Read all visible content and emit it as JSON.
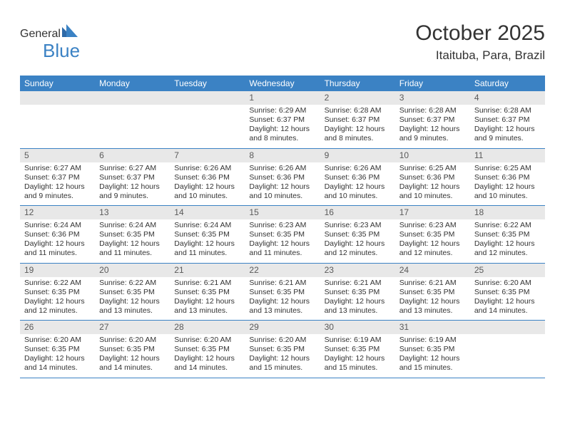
{
  "logo": {
    "text1": "General",
    "text2": "Blue"
  },
  "title": "October 2025",
  "location": "Itaituba, Para, Brazil",
  "styling": {
    "header_bg": "#3b82c4",
    "header_text": "#ffffff",
    "daynum_bg": "#e8e8e8",
    "daynum_text": "#5a5a5a",
    "body_text": "#333333",
    "cell_fontsize": 10.5,
    "header_fontsize": 12,
    "title_fontsize": 30,
    "location_fontsize": 17,
    "row_border": "#3b82c4",
    "columns": 7,
    "rows": 5
  },
  "dayNames": [
    "Sunday",
    "Monday",
    "Tuesday",
    "Wednesday",
    "Thursday",
    "Friday",
    "Saturday"
  ],
  "weeks": [
    [
      null,
      null,
      null,
      {
        "n": "1",
        "sr": "6:29 AM",
        "ss": "6:37 PM",
        "dl": "12 hours and 8 minutes."
      },
      {
        "n": "2",
        "sr": "6:28 AM",
        "ss": "6:37 PM",
        "dl": "12 hours and 8 minutes."
      },
      {
        "n": "3",
        "sr": "6:28 AM",
        "ss": "6:37 PM",
        "dl": "12 hours and 9 minutes."
      },
      {
        "n": "4",
        "sr": "6:28 AM",
        "ss": "6:37 PM",
        "dl": "12 hours and 9 minutes."
      }
    ],
    [
      {
        "n": "5",
        "sr": "6:27 AM",
        "ss": "6:37 PM",
        "dl": "12 hours and 9 minutes."
      },
      {
        "n": "6",
        "sr": "6:27 AM",
        "ss": "6:37 PM",
        "dl": "12 hours and 9 minutes."
      },
      {
        "n": "7",
        "sr": "6:26 AM",
        "ss": "6:36 PM",
        "dl": "12 hours and 10 minutes."
      },
      {
        "n": "8",
        "sr": "6:26 AM",
        "ss": "6:36 PM",
        "dl": "12 hours and 10 minutes."
      },
      {
        "n": "9",
        "sr": "6:26 AM",
        "ss": "6:36 PM",
        "dl": "12 hours and 10 minutes."
      },
      {
        "n": "10",
        "sr": "6:25 AM",
        "ss": "6:36 PM",
        "dl": "12 hours and 10 minutes."
      },
      {
        "n": "11",
        "sr": "6:25 AM",
        "ss": "6:36 PM",
        "dl": "12 hours and 10 minutes."
      }
    ],
    [
      {
        "n": "12",
        "sr": "6:24 AM",
        "ss": "6:36 PM",
        "dl": "12 hours and 11 minutes."
      },
      {
        "n": "13",
        "sr": "6:24 AM",
        "ss": "6:35 PM",
        "dl": "12 hours and 11 minutes."
      },
      {
        "n": "14",
        "sr": "6:24 AM",
        "ss": "6:35 PM",
        "dl": "12 hours and 11 minutes."
      },
      {
        "n": "15",
        "sr": "6:23 AM",
        "ss": "6:35 PM",
        "dl": "12 hours and 11 minutes."
      },
      {
        "n": "16",
        "sr": "6:23 AM",
        "ss": "6:35 PM",
        "dl": "12 hours and 12 minutes."
      },
      {
        "n": "17",
        "sr": "6:23 AM",
        "ss": "6:35 PM",
        "dl": "12 hours and 12 minutes."
      },
      {
        "n": "18",
        "sr": "6:22 AM",
        "ss": "6:35 PM",
        "dl": "12 hours and 12 minutes."
      }
    ],
    [
      {
        "n": "19",
        "sr": "6:22 AM",
        "ss": "6:35 PM",
        "dl": "12 hours and 12 minutes."
      },
      {
        "n": "20",
        "sr": "6:22 AM",
        "ss": "6:35 PM",
        "dl": "12 hours and 13 minutes."
      },
      {
        "n": "21",
        "sr": "6:21 AM",
        "ss": "6:35 PM",
        "dl": "12 hours and 13 minutes."
      },
      {
        "n": "22",
        "sr": "6:21 AM",
        "ss": "6:35 PM",
        "dl": "12 hours and 13 minutes."
      },
      {
        "n": "23",
        "sr": "6:21 AM",
        "ss": "6:35 PM",
        "dl": "12 hours and 13 minutes."
      },
      {
        "n": "24",
        "sr": "6:21 AM",
        "ss": "6:35 PM",
        "dl": "12 hours and 13 minutes."
      },
      {
        "n": "25",
        "sr": "6:20 AM",
        "ss": "6:35 PM",
        "dl": "12 hours and 14 minutes."
      }
    ],
    [
      {
        "n": "26",
        "sr": "6:20 AM",
        "ss": "6:35 PM",
        "dl": "12 hours and 14 minutes."
      },
      {
        "n": "27",
        "sr": "6:20 AM",
        "ss": "6:35 PM",
        "dl": "12 hours and 14 minutes."
      },
      {
        "n": "28",
        "sr": "6:20 AM",
        "ss": "6:35 PM",
        "dl": "12 hours and 14 minutes."
      },
      {
        "n": "29",
        "sr": "6:20 AM",
        "ss": "6:35 PM",
        "dl": "12 hours and 15 minutes."
      },
      {
        "n": "30",
        "sr": "6:19 AM",
        "ss": "6:35 PM",
        "dl": "12 hours and 15 minutes."
      },
      {
        "n": "31",
        "sr": "6:19 AM",
        "ss": "6:35 PM",
        "dl": "12 hours and 15 minutes."
      },
      null
    ]
  ],
  "labels": {
    "sunrise": "Sunrise: ",
    "sunset": "Sunset: ",
    "daylight": "Daylight: "
  }
}
